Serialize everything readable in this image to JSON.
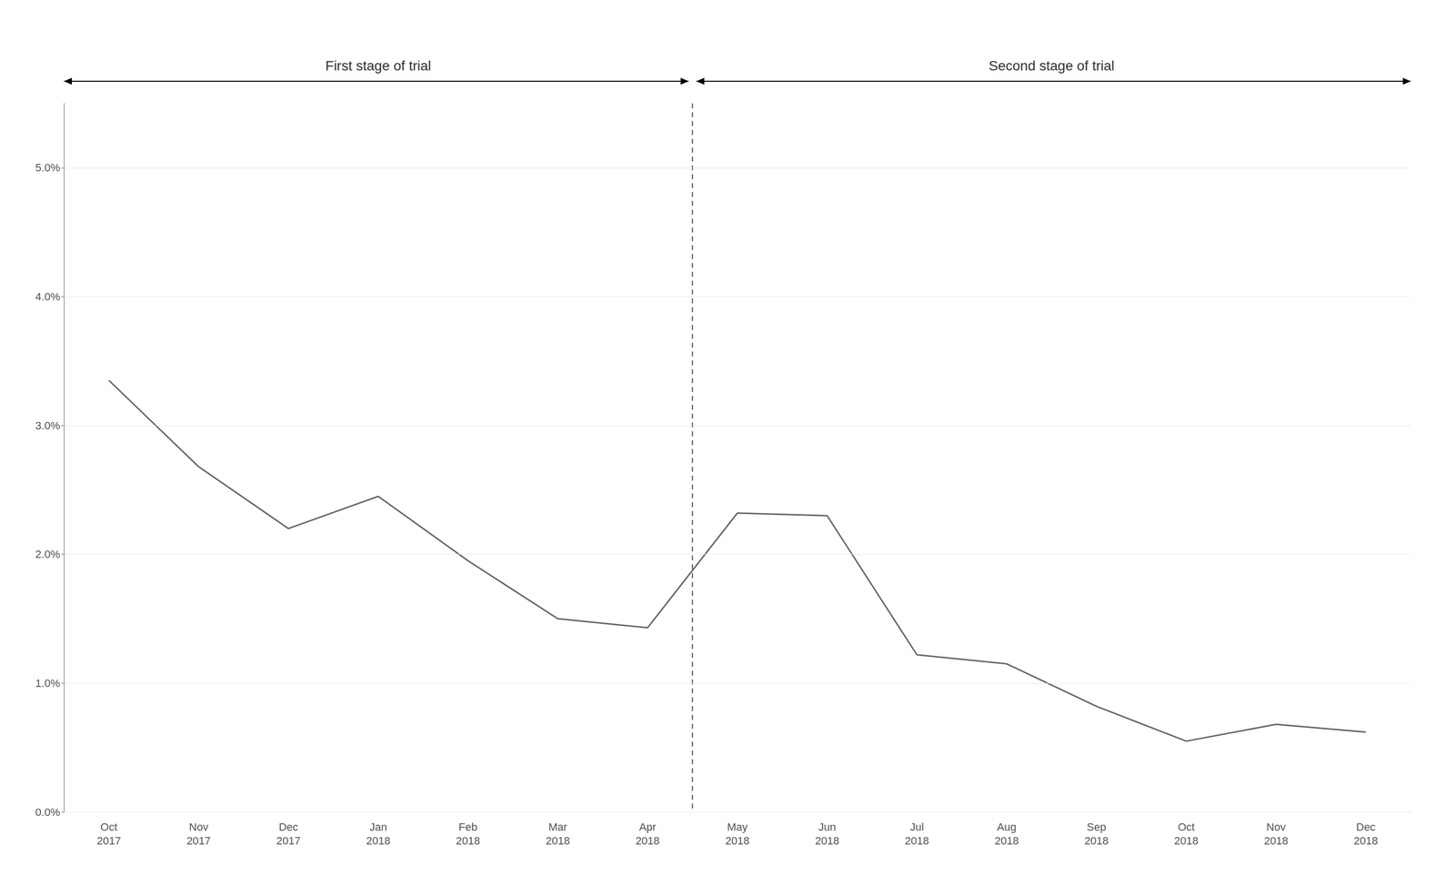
{
  "chart_data": {
    "type": "line",
    "categories": [
      "Oct\n2017",
      "Nov\n2017",
      "Dec\n2017",
      "Jan\n2018",
      "Feb\n2018",
      "Mar\n2018",
      "Apr\n2018",
      "May\n2018",
      "Jun\n2018",
      "Jul\n2018",
      "Aug\n2018",
      "Sep\n2018",
      "Oct\n2018",
      "Nov\n2018",
      "Dec\n2018"
    ],
    "values": [
      0.0335,
      0.0268,
      0.022,
      0.0245,
      0.0195,
      0.015,
      0.0143,
      0.0232,
      0.023,
      0.0122,
      0.0115,
      0.0082,
      0.0055,
      0.0068,
      0.0062
    ],
    "color": "#666666",
    "ylim": [
      0.0,
      0.055
    ],
    "yticks": [
      {
        "value": 0.0,
        "label": "0.0%"
      },
      {
        "value": 0.01,
        "label": "1.0%"
      },
      {
        "value": 0.02,
        "label": "2.0%"
      },
      {
        "value": 0.03,
        "label": "3.0%"
      },
      {
        "value": 0.04,
        "label": "4.0%"
      },
      {
        "value": 0.05,
        "label": "5.0%"
      }
    ],
    "grid": true,
    "annotations": [
      {
        "text": "First stage of trial",
        "from": "Oct\n2017",
        "to": "Apr\n2018"
      },
      {
        "text": "Second stage of trial",
        "from": "May\n2018",
        "to": "Dec\n2018"
      }
    ]
  }
}
